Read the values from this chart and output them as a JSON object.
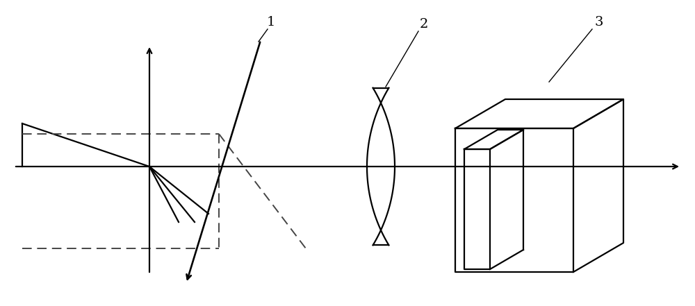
{
  "fig_width": 10.0,
  "fig_height": 4.41,
  "dpi": 100,
  "bg_color": "#ffffff",
  "line_color": "#000000",
  "dashed_color": "#444444",
  "label1": "1",
  "label2": "2",
  "label3": "3",
  "label_fontsize": 14,
  "ox": 215,
  "oy": 240
}
